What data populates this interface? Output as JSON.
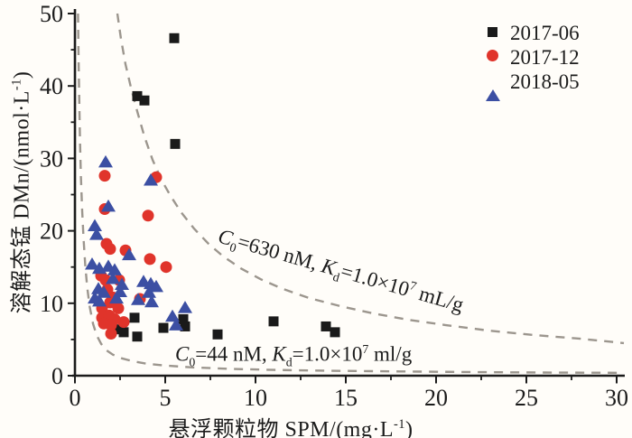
{
  "figure": {
    "background": "#fffdf9",
    "axis_color": "#1b1b1b"
  },
  "legend": {
    "items": [
      {
        "label": "2017-06",
        "marker": "square",
        "color": "#1a1a1a"
      },
      {
        "label": "2017-12",
        "marker": "circle",
        "color": "#e0342b"
      },
      {
        "label": "2018-05",
        "marker": "triangle",
        "color": "#3c4fa3"
      }
    ]
  },
  "x_axis": {
    "title_pre": "悬浮颗粒物 SPM/(mg·L",
    "title_sup": "-1",
    "title_post": ")",
    "ticks": [
      "0",
      "5",
      "10",
      "15",
      "20",
      "25",
      "30"
    ]
  },
  "y_axis": {
    "title_pre": "溶解态锰 DMn/(nmol·L",
    "title_sup": "-1",
    "title_post": ")",
    "ticks": [
      "0",
      "10",
      "20",
      "30",
      "40",
      "50"
    ]
  },
  "annotations": {
    "upper": {
      "var1": "C",
      "sub1": "0",
      "mid": "=630 nM, ",
      "var2": "K",
      "sub2": "d",
      "eq": "=1.0×10",
      "sup": "7",
      "tail": " mL/g"
    },
    "lower": {
      "var1": "C",
      "sub1": "0",
      "mid": "=44 nM, ",
      "var2": "K",
      "sub2": "d",
      "eq": "=1.0×10",
      "sup": "7",
      "tail": " ml/g"
    }
  },
  "chart_data": {
    "type": "scatter",
    "title": "",
    "xlabel": "悬浮颗粒物 SPM/(mg·L⁻¹)",
    "ylabel": "溶解态锰 DMn/(nmol·L⁻¹)",
    "xlim": [
      0,
      30
    ],
    "ylim": [
      0,
      50
    ],
    "x_ticks": [
      0,
      5,
      10,
      15,
      20,
      25,
      30
    ],
    "y_ticks": [
      0,
      10,
      20,
      30,
      40,
      50
    ],
    "x_minor_step": 2.5,
    "y_minor_step": 5,
    "grid": false,
    "legend_position": "top-right",
    "curve_color": "#9c968e",
    "series": [
      {
        "name": "2017-06",
        "marker": "square",
        "color": "#1a1a1a",
        "points": [
          [
            5.5,
            46.6
          ],
          [
            3.45,
            38.6
          ],
          [
            3.85,
            38.0
          ],
          [
            5.55,
            32.0
          ],
          [
            3.3,
            8.0
          ],
          [
            2.3,
            6.4
          ],
          [
            2.7,
            6.0
          ],
          [
            3.45,
            5.4
          ],
          [
            4.9,
            6.6
          ],
          [
            6.0,
            7.8
          ],
          [
            6.1,
            6.8
          ],
          [
            7.9,
            5.7
          ],
          [
            11.0,
            7.5
          ],
          [
            13.9,
            6.8
          ],
          [
            14.4,
            6.0
          ]
        ]
      },
      {
        "name": "2017-12",
        "marker": "circle",
        "color": "#e0342b",
        "points": [
          [
            1.65,
            27.6
          ],
          [
            1.65,
            23.0
          ],
          [
            4.5,
            27.4
          ],
          [
            4.05,
            22.1
          ],
          [
            1.75,
            18.2
          ],
          [
            1.95,
            17.5
          ],
          [
            2.8,
            17.3
          ],
          [
            4.15,
            16.1
          ],
          [
            5.05,
            15.0
          ],
          [
            1.45,
            13.8
          ],
          [
            1.7,
            13.2
          ],
          [
            2.45,
            13.2
          ],
          [
            1.8,
            11.9
          ],
          [
            2.1,
            10.8
          ],
          [
            1.95,
            10.1
          ],
          [
            3.6,
            10.6
          ],
          [
            1.5,
            9.3
          ],
          [
            2.4,
            9.3
          ],
          [
            1.5,
            8.0
          ],
          [
            1.9,
            8.3
          ],
          [
            2.2,
            7.8
          ],
          [
            2.7,
            7.4
          ],
          [
            1.6,
            7.2
          ],
          [
            2.0,
            7.0
          ],
          [
            2.0,
            5.8
          ]
        ]
      },
      {
        "name": "2018-05",
        "marker": "triangle",
        "color": "#3c4fa3",
        "points": [
          [
            1.7,
            29.5
          ],
          [
            1.85,
            23.4
          ],
          [
            4.2,
            27.0
          ],
          [
            1.1,
            20.7
          ],
          [
            1.2,
            19.5
          ],
          [
            3.0,
            16.7
          ],
          [
            0.95,
            15.4
          ],
          [
            1.35,
            14.8
          ],
          [
            1.85,
            15.1
          ],
          [
            2.2,
            14.6
          ],
          [
            2.1,
            13.4
          ],
          [
            2.6,
            12.6
          ],
          [
            3.8,
            13.0
          ],
          [
            4.2,
            12.7
          ],
          [
            4.5,
            12.3
          ],
          [
            1.3,
            12.0
          ],
          [
            1.6,
            11.5
          ],
          [
            2.5,
            11.6
          ],
          [
            4.1,
            11.5
          ],
          [
            1.1,
            10.7
          ],
          [
            1.35,
            10.3
          ],
          [
            2.3,
            10.7
          ],
          [
            3.5,
            10.5
          ],
          [
            4.25,
            10.2
          ],
          [
            5.4,
            8.2
          ],
          [
            6.1,
            9.4
          ],
          [
            5.6,
            7.0
          ]
        ]
      }
    ],
    "curves": [
      {
        "label": "C0=630 nM, Kd=1.0×10⁷ mL/g",
        "style": "dashed",
        "points": [
          [
            2.35,
            50
          ],
          [
            2.55,
            46.5
          ],
          [
            2.8,
            43
          ],
          [
            3.1,
            39.8
          ],
          [
            3.45,
            36.5
          ],
          [
            3.85,
            33
          ],
          [
            4.3,
            29.8
          ],
          [
            4.8,
            27
          ],
          [
            5.3,
            24.8
          ],
          [
            5.9,
            22.5
          ],
          [
            6.6,
            20.3
          ],
          [
            7.4,
            18.2
          ],
          [
            8.2,
            16.5
          ],
          [
            9.2,
            14.8
          ],
          [
            10.3,
            13.3
          ],
          [
            11.5,
            12.0
          ],
          [
            13,
            10.7
          ],
          [
            14.7,
            9.6
          ],
          [
            16.5,
            8.6
          ],
          [
            18.5,
            7.7
          ],
          [
            20.5,
            7.0
          ],
          [
            23,
            6.2
          ],
          [
            25.5,
            5.6
          ],
          [
            28,
            5.1
          ],
          [
            30.4,
            4.5
          ]
        ]
      },
      {
        "label": "C0=44 nM, Kd=1.0×10⁷ ml/g",
        "style": "dashed",
        "points": [
          [
            0.17,
            50
          ],
          [
            0.2,
            44
          ],
          [
            0.24,
            38
          ],
          [
            0.28,
            32.5
          ],
          [
            0.33,
            27.5
          ],
          [
            0.4,
            22.8
          ],
          [
            0.48,
            18.8
          ],
          [
            0.57,
            15.3
          ],
          [
            0.68,
            12.2
          ],
          [
            0.82,
            9.5
          ],
          [
            1.0,
            7.2
          ],
          [
            1.2,
            5.6
          ],
          [
            1.45,
            4.4
          ],
          [
            1.75,
            3.5
          ],
          [
            2.1,
            2.9
          ],
          [
            2.6,
            2.4
          ],
          [
            3.2,
            2.0
          ],
          [
            4.0,
            1.65
          ],
          [
            5.0,
            1.4
          ],
          [
            6.5,
            1.15
          ],
          [
            8.5,
            0.95
          ],
          [
            11,
            0.8
          ],
          [
            14,
            0.68
          ],
          [
            18,
            0.58
          ],
          [
            22,
            0.5
          ],
          [
            26,
            0.44
          ],
          [
            30.4,
            0.4
          ]
        ]
      }
    ]
  }
}
